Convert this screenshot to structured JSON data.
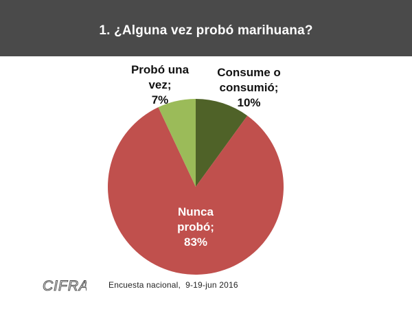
{
  "header": {
    "title": "1. ¿Alguna vez probó marihuana?"
  },
  "chart_data": {
    "type": "pie",
    "title": "1. ¿Alguna vez probó marihuana?",
    "slices": [
      {
        "label": "Consume o consumió",
        "value": 10,
        "display": "10%",
        "color": "#4f6228",
        "label_lines": [
          "Consume o",
          "consumió;",
          "10%"
        ]
      },
      {
        "label": "Nunca probó",
        "value": 83,
        "display": "83%",
        "color": "#c0504d",
        "label_lines": [
          "Nunca",
          "probó;",
          "83%"
        ]
      },
      {
        "label": "Probó una vez",
        "value": 7,
        "display": "7%",
        "color": "#9bbb59",
        "label_lines": [
          "Probó una",
          "vez;",
          "7%"
        ]
      }
    ],
    "start_angle_deg": 0,
    "direction": "clockwise"
  },
  "footer": {
    "logo_text": "CIFRA",
    "note": "Encuesta nacional,  9-19-jun 2016"
  }
}
